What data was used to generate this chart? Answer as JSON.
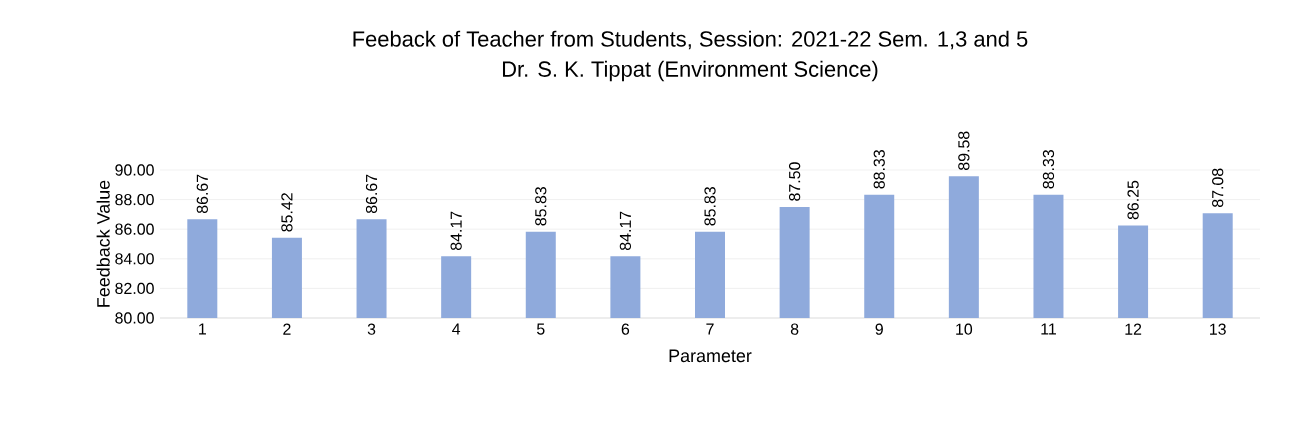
{
  "chart_data": {
    "type": "bar",
    "title": "Feeback of Teacher from Students, Session: 2021-22 Sem. 1,3 and 5",
    "subtitle": "Dr. S. K. Tippat (Environment Science)",
    "xlabel": "Parameter",
    "ylabel": "Feedback Value",
    "categories": [
      "1",
      "2",
      "3",
      "4",
      "5",
      "6",
      "7",
      "8",
      "9",
      "10",
      "11",
      "12",
      "13"
    ],
    "values": [
      86.67,
      85.42,
      86.67,
      84.17,
      85.83,
      84.17,
      85.83,
      87.5,
      88.33,
      89.58,
      88.33,
      86.25,
      87.08
    ],
    "value_labels": [
      "86.67",
      "85.42",
      "86.67",
      "84.17",
      "85.83",
      "84.17",
      "85.83",
      "87.50",
      "88.33",
      "89.58",
      "88.33",
      "86.25",
      "87.08"
    ],
    "color": "#8faadc",
    "ylim": [
      80,
      90
    ],
    "yticks": [
      {
        "value": 80,
        "label": "80.00"
      },
      {
        "value": 82,
        "label": "82.00"
      },
      {
        "value": 84,
        "label": "84.00"
      },
      {
        "value": 86,
        "label": "86.00"
      },
      {
        "value": 88,
        "label": "88.00"
      },
      {
        "value": 90,
        "label": "90.00"
      }
    ],
    "grid": "y"
  }
}
